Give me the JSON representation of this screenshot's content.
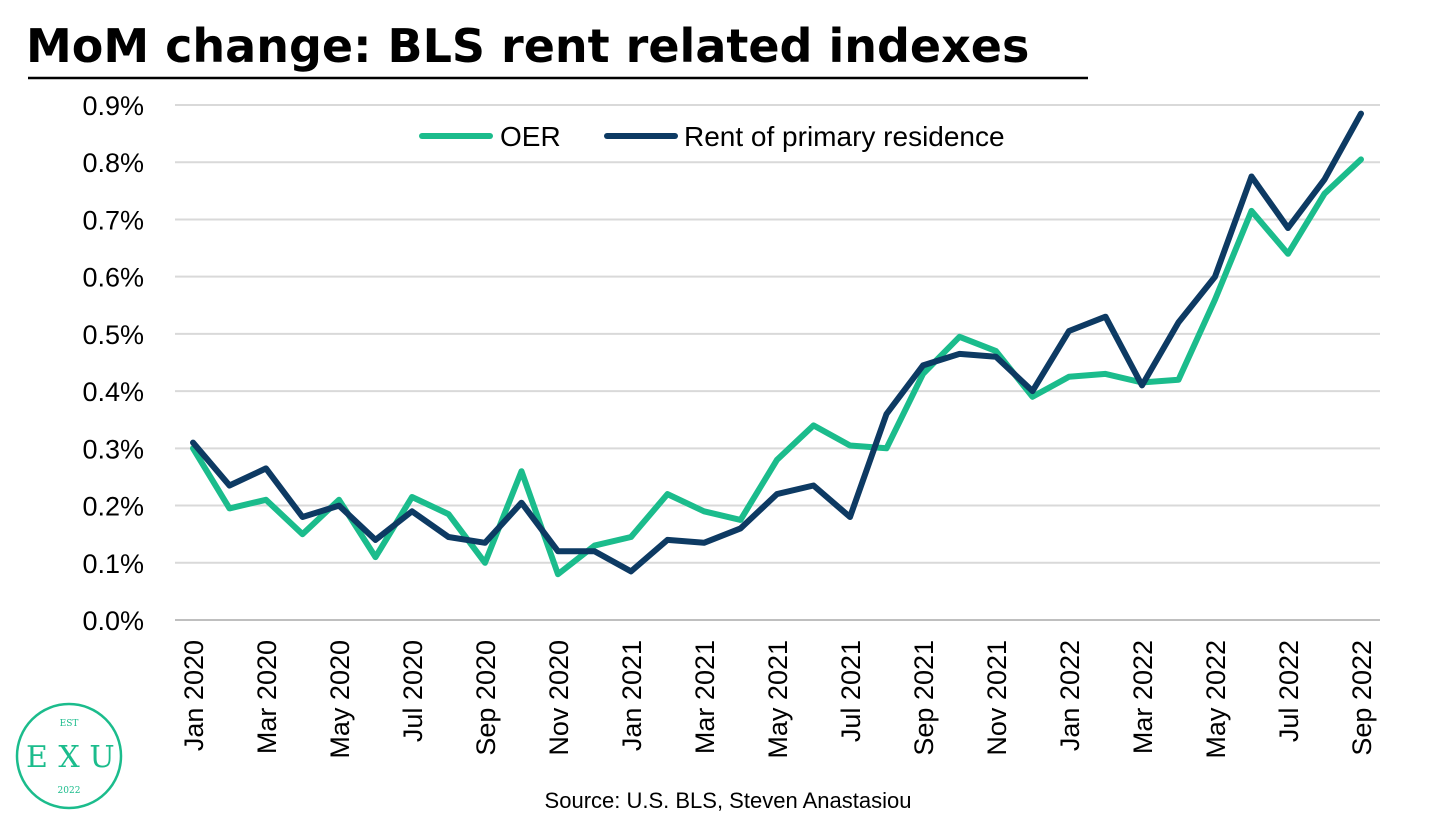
{
  "chart_data": {
    "type": "line",
    "title": "MoM change: BLS rent related indexes",
    "xlabel": "",
    "ylabel": "",
    "ylim": [
      0,
      0.9
    ],
    "y_ticks": [
      "0.0%",
      "0.1%",
      "0.2%",
      "0.3%",
      "0.4%",
      "0.5%",
      "0.6%",
      "0.7%",
      "0.8%",
      "0.9%"
    ],
    "grid": true,
    "legend": "top-center",
    "categories": [
      "Jan 2020",
      "Feb 2020",
      "Mar 2020",
      "Apr 2020",
      "May 2020",
      "Jun 2020",
      "Jul 2020",
      "Aug 2020",
      "Sep 2020",
      "Oct 2020",
      "Nov 2020",
      "Dec 2020",
      "Jan 2021",
      "Feb 2021",
      "Mar 2021",
      "Apr 2021",
      "May 2021",
      "Jun 2021",
      "Jul 2021",
      "Aug 2021",
      "Sep 2021",
      "Oct 2021",
      "Nov 2021",
      "Dec 2021",
      "Jan 2022",
      "Feb 2022",
      "Mar 2022",
      "Apr 2022",
      "May 2022",
      "Jun 2022",
      "Jul 2022",
      "Aug 2022",
      "Sep 2022"
    ],
    "x_tick_labels": [
      "Jan 2020",
      "Mar 2020",
      "May 2020",
      "Jul 2020",
      "Sep 2020",
      "Nov 2020",
      "Jan 2021",
      "Mar 2021",
      "May 2021",
      "Jul 2021",
      "Sep 2021",
      "Nov 2021",
      "Jan 2022",
      "Mar 2022",
      "May 2022",
      "Jul 2022",
      "Sep 2022"
    ],
    "series": [
      {
        "name": "OER",
        "color": "#1bbc8c",
        "values": [
          0.3,
          0.195,
          0.21,
          0.15,
          0.21,
          0.11,
          0.215,
          0.185,
          0.1,
          0.26,
          0.08,
          0.13,
          0.145,
          0.22,
          0.19,
          0.175,
          0.28,
          0.34,
          0.305,
          0.3,
          0.43,
          0.495,
          0.47,
          0.39,
          0.425,
          0.43,
          0.415,
          0.42,
          0.56,
          0.715,
          0.64,
          0.745,
          0.805
        ]
      },
      {
        "name": "Rent of primary residence",
        "color": "#0d3a63",
        "values": [
          0.31,
          0.235,
          0.265,
          0.18,
          0.2,
          0.14,
          0.19,
          0.145,
          0.135,
          0.205,
          0.12,
          0.12,
          0.085,
          0.14,
          0.135,
          0.16,
          0.22,
          0.235,
          0.18,
          0.36,
          0.445,
          0.465,
          0.46,
          0.4,
          0.505,
          0.53,
          0.41,
          0.52,
          0.6,
          0.775,
          0.685,
          0.77,
          0.885
        ]
      }
    ],
    "source": "Source: U.S. BLS, Steven Anastasiou"
  },
  "logo": {
    "top": "EST",
    "left": "E",
    "middle": "X",
    "right": "U",
    "bottom": "2022",
    "color": "#1bbc8c"
  },
  "colors": {
    "grid": "#d9d9d9",
    "axis": "#bfbfbf",
    "title_underline": "#000000"
  }
}
